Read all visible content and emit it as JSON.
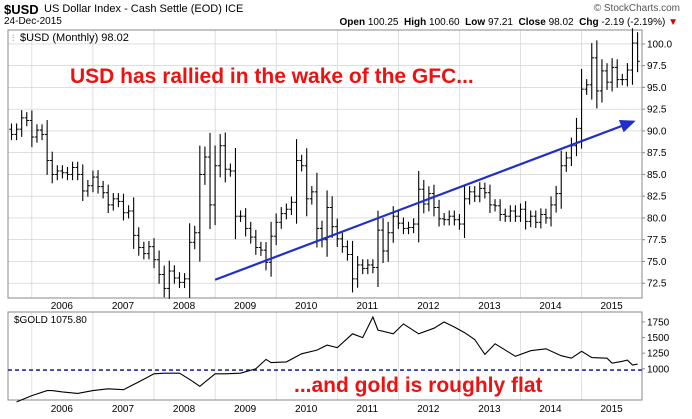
{
  "header": {
    "symbol": "$USD",
    "name": "US Dollar Index - Cash Settle (EOD)",
    "exchange": "ICE",
    "date": "24-Dec-2015",
    "source": "© StockCharts.com",
    "open_label": "Open",
    "open": "100.25",
    "high_label": "High",
    "high": "100.60",
    "low_label": "Low",
    "low": "97.21",
    "close_label": "Close",
    "close": "98.02",
    "chg_label": "Chg",
    "chg": "-2.19 (-2.19%)",
    "chg_arrow": "▼"
  },
  "annotations": {
    "usd": "USD has rallied in the wake of the GFC...",
    "gold": "...and gold is roughly flat"
  },
  "colors": {
    "price": "#000000",
    "annotation_text": "#ee1111",
    "trend_arrow": "#1f2fc8",
    "gold_reference": "#1f2fa0",
    "grid": "#cccccc"
  },
  "chart_data": [
    {
      "type": "ohlc",
      "legend": "$USD (Monthly) 98.02",
      "x_tick_labels": [
        "2006",
        "2007",
        "2008",
        "2009",
        "2010",
        "2011",
        "2012",
        "2013",
        "2014",
        "2015"
      ],
      "y_ticks": [
        72.5,
        75.0,
        77.5,
        80.0,
        82.5,
        85.0,
        87.5,
        90.0,
        92.5,
        95.0,
        97.5,
        100.0
      ],
      "ylim": [
        70.8,
        101.6
      ],
      "grid": true,
      "trend_arrow": {
        "from": [
          "2009-01",
          72.9
        ],
        "to": [
          "2015-12",
          91.2
        ]
      },
      "close_series": {
        "dates": [
          "2005-09",
          "2005-10",
          "2005-11",
          "2005-12",
          "2006-01",
          "2006-02",
          "2006-03",
          "2006-04",
          "2006-05",
          "2006-06",
          "2006-07",
          "2006-08",
          "2006-09",
          "2006-10",
          "2006-11",
          "2006-12",
          "2007-01",
          "2007-02",
          "2007-03",
          "2007-04",
          "2007-05",
          "2007-06",
          "2007-07",
          "2007-08",
          "2007-09",
          "2007-10",
          "2007-11",
          "2007-12",
          "2008-01",
          "2008-02",
          "2008-03",
          "2008-04",
          "2008-05",
          "2008-06",
          "2008-07",
          "2008-08",
          "2008-09",
          "2008-10",
          "2008-11",
          "2008-12",
          "2009-01",
          "2009-02",
          "2009-03",
          "2009-04",
          "2009-05",
          "2009-06",
          "2009-07",
          "2009-08",
          "2009-09",
          "2009-10",
          "2009-11",
          "2009-12",
          "2010-01",
          "2010-02",
          "2010-03",
          "2010-04",
          "2010-05",
          "2010-06",
          "2010-07",
          "2010-08",
          "2010-09",
          "2010-10",
          "2010-11",
          "2010-12",
          "2011-01",
          "2011-02",
          "2011-03",
          "2011-04",
          "2011-05",
          "2011-06",
          "2011-07",
          "2011-08",
          "2011-09",
          "2011-10",
          "2011-11",
          "2011-12",
          "2012-01",
          "2012-02",
          "2012-03",
          "2012-04",
          "2012-05",
          "2012-06",
          "2012-07",
          "2012-08",
          "2012-09",
          "2012-10",
          "2012-11",
          "2012-12",
          "2013-01",
          "2013-02",
          "2013-03",
          "2013-04",
          "2013-05",
          "2013-06",
          "2013-07",
          "2013-08",
          "2013-09",
          "2013-10",
          "2013-11",
          "2013-12",
          "2014-01",
          "2014-02",
          "2014-03",
          "2014-04",
          "2014-05",
          "2014-06",
          "2014-07",
          "2014-08",
          "2014-09",
          "2014-10",
          "2014-11",
          "2014-12",
          "2015-01",
          "2015-02",
          "2015-03",
          "2015-04",
          "2015-05",
          "2015-06",
          "2015-07",
          "2015-08",
          "2015-09",
          "2015-10",
          "2015-11",
          "2015-12"
        ],
        "close": [
          89.6,
          90.2,
          91.5,
          91.2,
          89.3,
          90.1,
          89.6,
          86.6,
          85.0,
          85.4,
          85.2,
          85.0,
          85.8,
          85.0,
          83.1,
          83.7,
          84.7,
          83.6,
          82.9,
          81.5,
          82.2,
          81.9,
          80.6,
          80.8,
          78.0,
          76.6,
          75.9,
          76.7,
          75.2,
          73.5,
          71.9,
          73.9,
          73.1,
          72.6,
          73.0,
          77.2,
          78.3,
          85.0,
          87.0,
          81.5,
          86.0,
          88.3,
          85.6,
          85.4,
          80.2,
          80.2,
          78.8,
          77.8,
          76.6,
          76.3,
          74.9,
          77.9,
          79.5,
          80.5,
          81.0,
          81.8,
          86.6,
          86.0,
          82.2,
          83.0,
          78.8,
          77.5,
          81.2,
          79.0,
          77.6,
          76.7,
          75.8,
          73.0,
          74.6,
          74.2,
          74.6,
          74.3,
          78.6,
          76.2,
          78.3,
          80.2,
          79.4,
          78.8,
          78.9,
          79.3,
          83.3,
          81.6,
          82.8,
          81.2,
          79.9,
          79.8,
          80.2,
          79.8,
          79.3,
          82.2,
          83.0,
          82.5,
          83.4,
          82.9,
          81.5,
          81.4,
          80.4,
          80.2,
          80.8,
          80.2,
          81.0,
          79.6,
          80.2,
          79.5,
          80.4,
          80.0,
          81.5,
          82.8,
          86.0,
          86.9,
          88.3,
          90.3,
          94.8,
          95.3,
          98.4,
          94.6,
          96.9,
          95.6,
          97.3,
          95.9,
          95.9,
          97.0,
          100.1,
          98.0
        ]
      }
    },
    {
      "type": "line",
      "legend": "$GOLD 1075.80",
      "y_ticks": [
        1000,
        1250,
        1500,
        1750
      ],
      "ylim": [
        500,
        1910
      ],
      "grid": false,
      "reference_line": 980,
      "x_tick_labels": [
        "2006",
        "2007",
        "2008",
        "2009",
        "2010",
        "2011",
        "2012",
        "2013",
        "2014",
        "2015"
      ],
      "series": [
        {
          "x": [
            "2005-10",
            "2006-01",
            "2006-04",
            "2006-05",
            "2006-07",
            "2006-10",
            "2007-01",
            "2007-04",
            "2007-07",
            "2007-10",
            "2008-01",
            "2008-03",
            "2008-06",
            "2008-08",
            "2008-10",
            "2009-01",
            "2009-03",
            "2009-06",
            "2009-09",
            "2009-11",
            "2009-12",
            "2010-03",
            "2010-06",
            "2010-09",
            "2010-11",
            "2011-01",
            "2011-04",
            "2011-06",
            "2011-08",
            "2011-09",
            "2011-12",
            "2012-02",
            "2012-05",
            "2012-08",
            "2012-10",
            "2012-12",
            "2013-02",
            "2013-04",
            "2013-06",
            "2013-08",
            "2013-12",
            "2014-03",
            "2014-06",
            "2014-09",
            "2014-11",
            "2015-01",
            "2015-03",
            "2015-06",
            "2015-07",
            "2015-09",
            "2015-10",
            "2015-11",
            "2015-12"
          ],
          "y": [
            470,
            570,
            650,
            650,
            630,
            605,
            650,
            680,
            665,
            790,
            920,
            930,
            930,
            830,
            720,
            920,
            920,
            930,
            1000,
            1150,
            1100,
            1110,
            1240,
            1300,
            1380,
            1340,
            1560,
            1500,
            1830,
            1620,
            1560,
            1720,
            1560,
            1650,
            1750,
            1670,
            1580,
            1470,
            1230,
            1400,
            1200,
            1290,
            1320,
            1210,
            1170,
            1280,
            1180,
            1170,
            1090,
            1120,
            1140,
            1060,
            1075.8
          ]
        }
      ]
    }
  ]
}
